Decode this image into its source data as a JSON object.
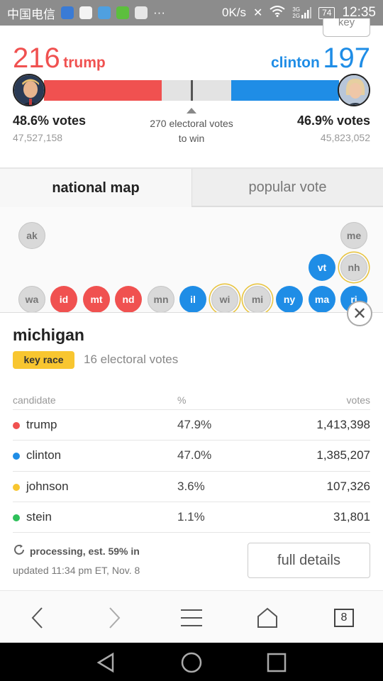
{
  "status_bar": {
    "carrier": "中国电信",
    "overflow": "···",
    "speed": "0K/s",
    "network_top": "3G",
    "network_bottom": "2G",
    "battery": "74",
    "time": "12:35"
  },
  "key_button": {
    "label": "key"
  },
  "race": {
    "left": {
      "count": "216",
      "name": "trump",
      "pct_label": "48.6% votes",
      "votes": "47,527,158",
      "color": "#f05150",
      "fill_fraction": 0.4
    },
    "right": {
      "count": "197",
      "name": "clinton",
      "pct_label": "46.9% votes",
      "votes": "45,823,052",
      "color": "#1f8de6",
      "fill_fraction": 0.365
    },
    "to_win_line1": "270 electoral votes",
    "to_win_line2": "to win"
  },
  "tabs": [
    {
      "label": "national map",
      "active": true
    },
    {
      "label": "popular vote",
      "active": false
    }
  ],
  "map_states": [
    {
      "abbr": "ak",
      "status": "gray",
      "key_race": false
    },
    {
      "abbr": "me",
      "status": "gray",
      "key_race": false
    },
    {
      "abbr": "vt",
      "status": "blue",
      "key_race": false
    },
    {
      "abbr": "nh",
      "status": "gray",
      "key_race": true
    },
    {
      "abbr": "wa",
      "status": "gray",
      "key_race": false
    },
    {
      "abbr": "id",
      "status": "red",
      "key_race": false
    },
    {
      "abbr": "mt",
      "status": "red",
      "key_race": false
    },
    {
      "abbr": "nd",
      "status": "red",
      "key_race": false
    },
    {
      "abbr": "mn",
      "status": "gray",
      "key_race": false
    },
    {
      "abbr": "il",
      "status": "blue",
      "key_race": false
    },
    {
      "abbr": "wi",
      "status": "gray",
      "key_race": true
    },
    {
      "abbr": "mi",
      "status": "gray",
      "key_race": true
    },
    {
      "abbr": "ny",
      "status": "blue",
      "key_race": false
    },
    {
      "abbr": "ma",
      "status": "blue",
      "key_race": false
    },
    {
      "abbr": "ri",
      "status": "blue",
      "key_race": false
    }
  ],
  "detail": {
    "state_name": "michigan",
    "badge": "key race",
    "electoral_votes": "16 electoral votes",
    "columns": {
      "candidate": "candidate",
      "percent": "%",
      "votes": "votes"
    },
    "rows": [
      {
        "candidate": "trump",
        "percent": "47.9%",
        "votes": "1,413,398",
        "color": "#f05150"
      },
      {
        "candidate": "clinton",
        "percent": "47.0%",
        "votes": "1,385,207",
        "color": "#1f8de6"
      },
      {
        "candidate": "johnson",
        "percent": "3.6%",
        "votes": "107,326",
        "color": "#f8c630"
      },
      {
        "candidate": "stein",
        "percent": "1.1%",
        "votes": "31,801",
        "color": "#2ec05a"
      }
    ],
    "processing": "processing, est. 59% in",
    "updated": "updated 11:34 pm ET, Nov. 8",
    "full_details": "full details",
    "close_symbol": "✕"
  },
  "browser_toolbar": {
    "tab_count": "8"
  }
}
